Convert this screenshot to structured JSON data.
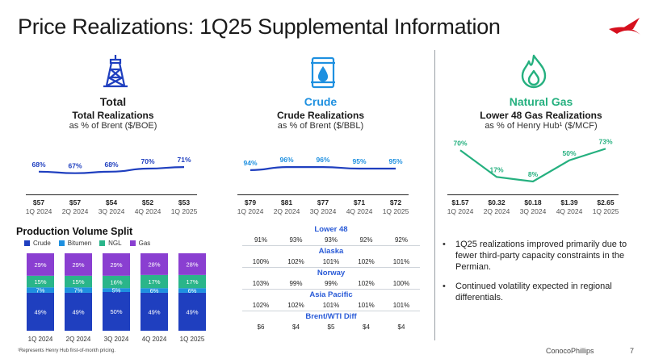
{
  "page": {
    "title": "Price Realizations: 1Q25 Supplemental Information",
    "footnote": "¹Represents Henry Hub first-of-month pricing.",
    "company": "ConocoPhillips",
    "page_number": "7"
  },
  "colors": {
    "blue_dark": "#1f3fbf",
    "blue_light": "#1e90e0",
    "teal": "#2ab58a",
    "purple": "#8a3fd1",
    "green_line": "#25b07f",
    "brand_red": "#d6101e"
  },
  "sections": {
    "total": {
      "name": "Total",
      "subtitle": "Total Realizations",
      "unit": "as % of Brent ($/BOE)",
      "icon": "oil-derrick-icon"
    },
    "crude": {
      "name": "Crude",
      "subtitle": "Crude Realizations",
      "unit": "as % of Brent ($/BBL)",
      "icon": "oil-barrel-icon"
    },
    "gas": {
      "name": "Natural Gas",
      "subtitle": "Lower 48 Gas Realizations",
      "unit": "as % of Henry Hub¹ ($/MCF)",
      "icon": "flame-icon"
    }
  },
  "quarters": [
    "1Q 2024",
    "2Q 2024",
    "3Q 2024",
    "4Q 2024",
    "1Q 2025"
  ],
  "chart_data": [
    {
      "id": "total",
      "type": "line",
      "x": [
        "1Q 2024",
        "2Q 2024",
        "3Q 2024",
        "4Q 2024",
        "1Q 2025"
      ],
      "values": [
        68,
        67,
        68,
        70,
        71
      ],
      "value_labels": [
        "68%",
        "67%",
        "68%",
        "70%",
        "71%"
      ],
      "price_labels": [
        "$57",
        "$57",
        "$54",
        "$52",
        "$53"
      ],
      "ylim": [
        60,
        80
      ]
    },
    {
      "id": "crude",
      "type": "line",
      "x": [
        "1Q 2024",
        "2Q 2024",
        "3Q 2024",
        "4Q 2024",
        "1Q 2025"
      ],
      "values": [
        94,
        96,
        96,
        95,
        95
      ],
      "value_labels": [
        "94%",
        "96%",
        "96%",
        "95%",
        "95%"
      ],
      "price_labels": [
        "$79",
        "$81",
        "$77",
        "$71",
        "$72"
      ],
      "ylim": [
        85,
        105
      ]
    },
    {
      "id": "gas",
      "type": "line",
      "x": [
        "1Q 2024",
        "2Q 2024",
        "3Q 2024",
        "4Q 2024",
        "1Q 2025"
      ],
      "values": [
        70,
        17,
        8,
        50,
        73
      ],
      "value_labels": [
        "70%",
        "17%",
        "8%",
        "50%",
        "73%"
      ],
      "price_labels": [
        "$1.57",
        "$0.32",
        "$0.18",
        "$1.39",
        "$2.65"
      ],
      "ylim": [
        0,
        80
      ]
    },
    {
      "id": "production",
      "type": "bar",
      "title": "Production Volume Split",
      "categories": [
        "1Q 2024",
        "2Q 2024",
        "3Q 2024",
        "4Q 2024",
        "1Q 2025"
      ],
      "series": [
        {
          "name": "Crude",
          "values": [
            49,
            49,
            50,
            49,
            49
          ],
          "labels": [
            "49%",
            "49%",
            "50%",
            "49%",
            "49%"
          ]
        },
        {
          "name": "Bitumen",
          "values": [
            7,
            7,
            5,
            6,
            6
          ],
          "labels": [
            "7%",
            "7%",
            "5%",
            "6%",
            "6%"
          ]
        },
        {
          "name": "NGL",
          "values": [
            15,
            15,
            16,
            17,
            17
          ],
          "labels": [
            "15%",
            "15%",
            "16%",
            "17%",
            "17%"
          ]
        },
        {
          "name": "Gas",
          "values": [
            29,
            29,
            29,
            28,
            28
          ],
          "labels": [
            "29%",
            "29%",
            "29%",
            "28%",
            "28%"
          ]
        }
      ],
      "ylim": [
        0,
        100
      ],
      "legend": "top"
    }
  ],
  "crude_table": [
    {
      "region": "Lower 48",
      "values": [
        "91%",
        "93%",
        "93%",
        "92%",
        "92%"
      ]
    },
    {
      "region": "Alaska",
      "values": [
        "100%",
        "102%",
        "101%",
        "102%",
        "101%"
      ]
    },
    {
      "region": "Norway",
      "values": [
        "103%",
        "99%",
        "99%",
        "102%",
        "100%"
      ]
    },
    {
      "region": "Asia Pacific",
      "values": [
        "102%",
        "102%",
        "101%",
        "101%",
        "101%"
      ]
    },
    {
      "region": "Brent/WTI Diff",
      "values": [
        "$6",
        "$4",
        "$5",
        "$4",
        "$4"
      ]
    }
  ],
  "bullets": [
    "1Q25 realizations improved primarily due to fewer third-party capacity constraints in the Permian.",
    "Continued volatility expected in regional differentials."
  ]
}
